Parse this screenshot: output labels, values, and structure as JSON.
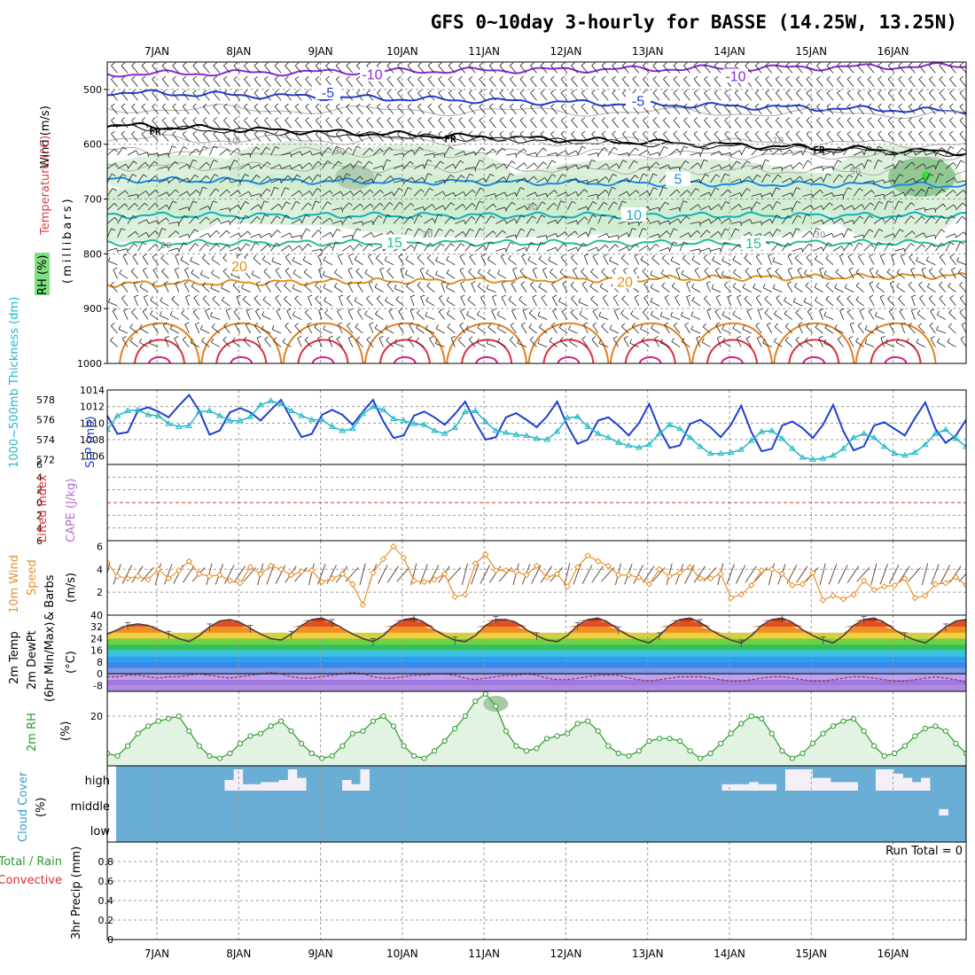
{
  "title": "GFS 0~10day 3-hourly for BASSE (14.25W, 13.25N)",
  "dates": [
    "7JAN",
    "8JAN",
    "9JAN",
    "10JAN",
    "11JAN",
    "12JAN",
    "13JAN",
    "14JAN",
    "15JAN",
    "16JAN"
  ],
  "colors": {
    "rh_green": "#7ee07e",
    "slp": "#1f3fcf",
    "thickness": "#1fb8c8",
    "wind10m": "#e8902a",
    "rh2m": "#2a9a2a",
    "cloud": "#6aaed6",
    "lifted_red": "#d93030"
  },
  "labels": {
    "upper": {
      "wind": "Wind (m/s)",
      "temperature": "Temperature (°C)",
      "rh": "RH (%)",
      "millibars": "(millibars)",
      "fr": "FR"
    },
    "pressure": {
      "thickness": "1000~500mb Thickness (dm)",
      "slp": "SLP (mb)"
    },
    "stability": {
      "lifted": "Lifted Index",
      "cape": "CAPE (J/kg)"
    },
    "wind10": {
      "line1": "10m Wind",
      "line2": "Speed",
      "line3": "& Barbs",
      "unit": "(m/s)"
    },
    "temp2m": {
      "line1": "2m Temp",
      "line2": "2m DewPt",
      "line3": "(6hr Min/Max)",
      "unit": "(°C)"
    },
    "rh2m": {
      "name": "2m RH",
      "unit": "(%)"
    },
    "cloud": {
      "name": "Cloud Cover",
      "unit": "(%)",
      "high": "high",
      "middle": "middle",
      "low": "low"
    },
    "precip": {
      "total": "Total / Rain",
      "convective": "Convective",
      "ylabel": "3hr Precip (mm)",
      "run_total": "Run Total = 0"
    }
  },
  "chart_data": [
    {
      "type": "heatmap",
      "panel": "upper-air",
      "y_levels_mb": [
        500,
        600,
        700,
        800,
        900,
        1000
      ],
      "ylim": [
        1000,
        450
      ],
      "temperature_isotherm_labels": [
        "-10",
        "-5",
        "5",
        "10",
        "15",
        "20"
      ],
      "freezing_level_label": "FR",
      "rh_labels": [
        "10",
        "30",
        "50"
      ]
    },
    {
      "type": "line",
      "panel": "pressure",
      "thickness_ticks_dm": [
        572,
        574,
        576,
        578
      ],
      "slp_ticks_mb": [
        1006,
        1008,
        1010,
        1012,
        1014
      ],
      "thickness_ylim": [
        571.5,
        579
      ],
      "slp_ylim": [
        1005,
        1014
      ],
      "series": [
        {
          "name": "SLP (mb)",
          "values": [
            1010.9,
            1008.7,
            1008.9,
            1011.5,
            1011.9,
            1011.4,
            1010.7,
            1012.1,
            1013.4,
            1011.5,
            1008.6,
            1009.1,
            1011.3,
            1011.8,
            1011.3,
            1010.3,
            1011.6,
            1012.8,
            1010.5,
            1008.3,
            1008.7,
            1011.0,
            1011.6,
            1011.0,
            1009.8,
            1011.4,
            1012.8,
            1010.2,
            1008.2,
            1008.5,
            1010.9,
            1011.4,
            1010.7,
            1009.8,
            1011.1,
            1012.6,
            1010.1,
            1008.0,
            1008.3,
            1010.7,
            1011.2,
            1010.4,
            1009.5,
            1010.8,
            1012.6,
            1009.7,
            1007.5,
            1008.0,
            1010.3,
            1010.7,
            1009.7,
            1008.5,
            1010.0,
            1012.3,
            1009.3,
            1007.0,
            1007.3,
            1009.9,
            1010.4,
            1009.5,
            1008.3,
            1009.8,
            1012.1,
            1008.9,
            1006.6,
            1006.9,
            1009.7,
            1010.2,
            1009.4,
            1008.2,
            1009.8,
            1012.2,
            1009.0,
            1006.7,
            1007.2,
            1009.7,
            1010.1,
            1009.3,
            1008.5,
            1010.6,
            1012.5,
            1009.3,
            1007.6,
            1008.5,
            1010.4
          ]
        },
        {
          "name": "1000~500mb Thickness (dm)",
          "values": [
            575.0,
            576.4,
            576.9,
            577.0,
            576.5,
            576.4,
            575.6,
            575.3,
            575.4,
            576.8,
            576.9,
            576.4,
            575.9,
            575.9,
            576.3,
            577.5,
            577.9,
            577.6,
            576.9,
            576.4,
            576.0,
            576.0,
            575.3,
            574.9,
            575.1,
            576.6,
            577.3,
            577.0,
            576.1,
            575.9,
            575.6,
            575.5,
            574.9,
            574.6,
            575.2,
            576.8,
            576.9,
            575.8,
            574.9,
            574.7,
            574.5,
            574.4,
            574.1,
            574.0,
            574.8,
            576.2,
            576.3,
            575.3,
            574.6,
            574.2,
            573.7,
            573.4,
            573.2,
            573.5,
            574.6,
            575.5,
            575.1,
            574.2,
            573.3,
            572.6,
            572.6,
            572.7,
            573.0,
            573.9,
            574.8,
            574.9,
            574.1,
            573.1,
            572.2,
            572.0,
            572.1,
            572.4,
            573.1,
            574.2,
            574.6,
            574.2,
            573.3,
            572.6,
            572.4,
            572.7,
            573.5,
            574.6,
            575.0,
            574.1,
            573.3
          ]
        }
      ]
    },
    {
      "type": "line",
      "panel": "stability",
      "ticks": [
        "6",
        "4",
        "2",
        "0",
        "2",
        "4",
        "6"
      ],
      "ylim": [
        -6,
        6
      ]
    },
    {
      "type": "line",
      "panel": "10m-wind",
      "ylim": [
        0,
        6.5
      ],
      "yticks": [
        2,
        4,
        6
      ],
      "series": [
        {
          "name": "10m Wind Speed",
          "values": [
            4.6,
            3.4,
            3.2,
            3.4,
            3.1,
            4.0,
            3.2,
            3.9,
            4.7,
            3.6,
            3.4,
            3.5,
            3.0,
            2.8,
            4.2,
            3.6,
            4.3,
            4.0,
            3.5,
            3.8,
            3.9,
            2.9,
            3.2,
            3.6,
            2.7,
            0.9,
            3.7,
            4.9,
            6.0,
            5.0,
            3.0,
            2.9,
            3.1,
            3.6,
            1.6,
            1.8,
            4.5,
            5.3,
            3.9,
            3.9,
            3.8,
            3.5,
            4.3,
            3.3,
            3.6,
            2.5,
            4.2,
            5.2,
            4.7,
            4.3,
            3.5,
            3.5,
            3.3,
            2.7,
            4.0,
            3.4,
            3.7,
            4.2,
            3.2,
            3.2,
            3.6,
            1.5,
            1.8,
            2.6,
            3.9,
            4.0,
            3.6,
            2.6,
            2.7,
            3.7,
            1.3,
            1.7,
            1.4,
            1.8,
            3.0,
            2.2,
            2.5,
            2.6,
            3.2,
            1.5,
            1.7,
            2.7,
            2.8,
            3.3,
            2.6
          ]
        }
      ]
    },
    {
      "type": "area",
      "panel": "2m-temp",
      "ylim": [
        -12,
        40
      ],
      "yticks": [
        40,
        32,
        24,
        16,
        8,
        0,
        -8
      ],
      "series": [
        {
          "name": "2m Temp",
          "values": [
            27,
            30,
            33,
            34,
            33,
            30,
            27,
            24,
            22,
            26,
            32,
            36,
            37,
            35,
            31,
            27,
            24,
            23,
            27,
            33,
            37,
            38,
            35,
            31,
            27,
            24,
            22,
            26,
            33,
            37,
            38,
            35,
            30,
            26,
            23,
            22,
            26,
            33,
            37,
            37,
            35,
            30,
            26,
            23,
            22,
            26,
            33,
            37,
            38,
            35,
            30,
            26,
            23,
            21,
            26,
            33,
            37,
            38,
            35,
            30,
            26,
            23,
            21,
            26,
            33,
            37,
            38,
            35,
            30,
            26,
            23,
            21,
            26,
            33,
            37,
            38,
            35,
            30,
            26,
            23,
            21,
            26,
            32,
            36,
            37
          ]
        },
        {
          "name": "2m DewPt",
          "values": [
            -2,
            -2,
            -1,
            -1,
            -2,
            -3,
            -2,
            -2,
            -1,
            0,
            -1,
            -2,
            -3,
            -2,
            -1,
            0,
            1,
            0,
            -2,
            -3,
            -3,
            -2,
            -1,
            0,
            1,
            0,
            -2,
            -3,
            -3,
            -2,
            -1,
            -1,
            0,
            0,
            -1,
            -3,
            -4,
            -3,
            -2,
            -1,
            -1,
            0,
            -1,
            -3,
            -4,
            -4,
            -3,
            -2,
            -1,
            -1,
            -1,
            -3,
            -4,
            -5,
            -4,
            -3,
            -2,
            -2,
            -2,
            -3,
            -4,
            -5,
            -5,
            -4,
            -3,
            -2,
            -2,
            -3,
            -4,
            -5,
            -5,
            -4,
            -3,
            -2,
            -2,
            -3,
            -4,
            -5,
            -5,
            -4,
            -3,
            -2,
            -3,
            -4,
            -6
          ]
        }
      ]
    },
    {
      "type": "line",
      "panel": "2m-rh",
      "ylim": [
        0,
        30
      ],
      "yticks": [
        20
      ],
      "series": [
        {
          "name": "2m RH",
          "values": [
            5,
            4,
            8,
            13,
            16,
            18,
            19,
            20,
            14,
            8,
            4,
            3,
            5,
            9,
            12,
            13,
            16,
            18,
            14,
            9,
            5,
            3,
            4,
            8,
            13,
            14,
            18,
            20,
            16,
            8,
            4,
            3,
            6,
            10,
            15,
            20,
            26,
            29,
            24,
            14,
            8,
            6,
            7,
            11,
            12,
            13,
            17,
            18,
            14,
            8,
            5,
            4,
            6,
            10,
            11,
            11,
            10,
            6,
            3,
            5,
            9,
            13,
            17,
            20,
            19,
            13,
            6,
            3,
            5,
            9,
            13,
            16,
            18,
            19,
            14,
            8,
            4,
            5,
            8,
            12,
            15,
            16,
            14,
            9,
            5
          ]
        }
      ]
    },
    {
      "type": "bar",
      "panel": "cloud-cover",
      "levels": [
        "high",
        "middle",
        "low"
      ],
      "series": [
        {
          "name": "high",
          "values": [
            0,
            0,
            0,
            0,
            0,
            0,
            0,
            0,
            0,
            0,
            0,
            0,
            50,
            100,
            30,
            30,
            40,
            40,
            50,
            100,
            60,
            0,
            0,
            0,
            0,
            50,
            30,
            100,
            0,
            0,
            0,
            0,
            0,
            0,
            0,
            0,
            0,
            0,
            0,
            0,
            0,
            0,
            0,
            0,
            0,
            0,
            0,
            0,
            0,
            0,
            0,
            0,
            0,
            0,
            0,
            0,
            0,
            0,
            0,
            0,
            0,
            0,
            0,
            0,
            0,
            0,
            0,
            30,
            30,
            30,
            40,
            30,
            30,
            0,
            100,
            100,
            100,
            60,
            60,
            40,
            40,
            40,
            0,
            0,
            100,
            100,
            80,
            60,
            40,
            60,
            0,
            0,
            0,
            0
          ]
        },
        {
          "name": "middle",
          "values": [
            0,
            0,
            0,
            0,
            0,
            0,
            0,
            0,
            0,
            0,
            0,
            0,
            0,
            0,
            0,
            0,
            0,
            0,
            0,
            0,
            0,
            0,
            0,
            0,
            0,
            0,
            0,
            0,
            0,
            0,
            0,
            0,
            0,
            0,
            0,
            0,
            0,
            0,
            0,
            0,
            0,
            0,
            0,
            0,
            0,
            0,
            0,
            0,
            0,
            0,
            0,
            0,
            0,
            0,
            0,
            0,
            0,
            0,
            0,
            0,
            0,
            0,
            0,
            0,
            0,
            0,
            0,
            0,
            0,
            0,
            0,
            0,
            0,
            0,
            0,
            0,
            0,
            0,
            0,
            0,
            0,
            0,
            0,
            0,
            0,
            0,
            0,
            0,
            0,
            0,
            0,
            60,
            0,
            0
          ]
        }
      ]
    },
    {
      "type": "bar",
      "panel": "precip",
      "ylim": [
        0,
        1
      ],
      "yticks": [
        "0",
        "0.2",
        "0.4",
        "0.6",
        "0.8"
      ],
      "series": [
        {
          "name": "Total / Rain",
          "values": []
        },
        {
          "name": "Convective",
          "values": []
        }
      ]
    }
  ]
}
